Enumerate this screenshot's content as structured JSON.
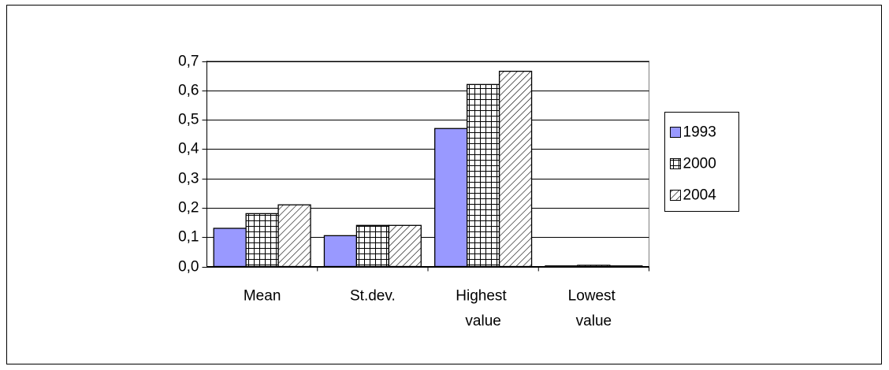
{
  "chart_data": {
    "type": "bar",
    "categories": [
      "Mean",
      "St.dev.",
      "Highest value",
      "Lowest value"
    ],
    "series": [
      {
        "name": "1993",
        "color": "#9999ff",
        "pattern": "solid",
        "values": [
          0.13,
          0.105,
          0.47,
          0.002
        ]
      },
      {
        "name": "2000",
        "color": "#000000",
        "pattern": "grid",
        "values": [
          0.18,
          0.14,
          0.62,
          0.004
        ]
      },
      {
        "name": "2004",
        "color": "#000000",
        "pattern": "diagonal",
        "values": [
          0.21,
          0.14,
          0.665,
          0.002
        ]
      }
    ],
    "ylim": [
      0,
      0.7
    ],
    "yticks": [
      {
        "value": 0,
        "label": "0,0"
      },
      {
        "value": 0.1,
        "label": "0,1"
      },
      {
        "value": 0.2,
        "label": "0,2"
      },
      {
        "value": 0.3,
        "label": "0,3"
      },
      {
        "value": 0.4,
        "label": "0,4"
      },
      {
        "value": 0.5,
        "label": "0,5"
      },
      {
        "value": 0.6,
        "label": "0,6"
      },
      {
        "value": 0.7,
        "label": "0,7"
      }
    ],
    "grid": true,
    "legend": "right"
  }
}
